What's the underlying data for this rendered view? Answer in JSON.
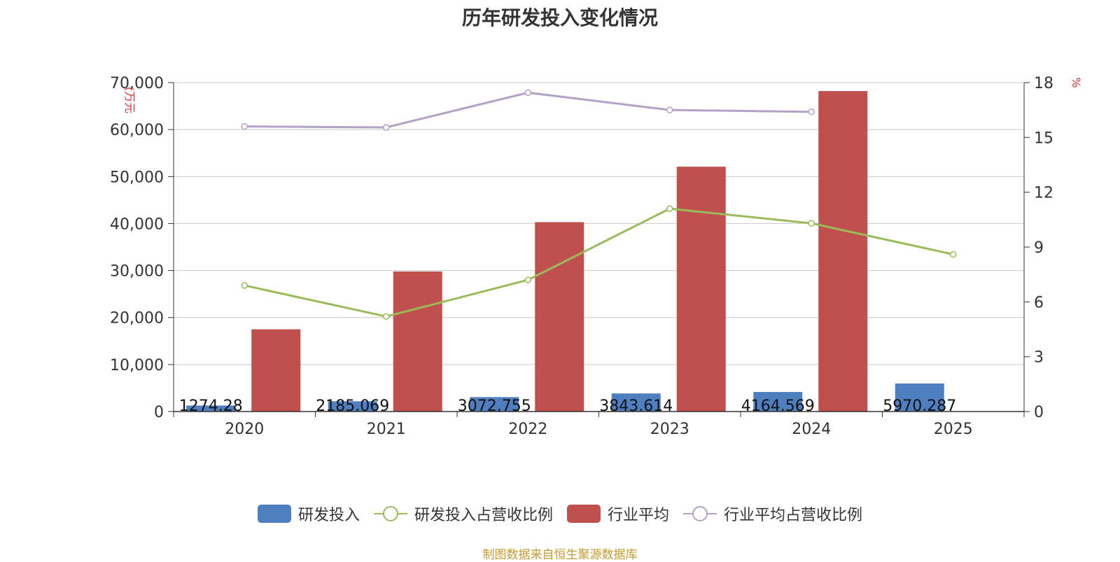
{
  "chart_data": {
    "type": "bar+line",
    "title": "历年研发投入变化情况",
    "y_left_label": "(万元",
    "y_right_label": "%",
    "categories": [
      "2020",
      "2021",
      "2022",
      "2023",
      "2024",
      "2025"
    ],
    "y_left_ticks": [
      "0",
      "10,000",
      "20,000",
      "30,000",
      "40,000",
      "50,000",
      "60,000",
      "70,000"
    ],
    "y_right_ticks": [
      "0",
      "3",
      "6",
      "9",
      "12",
      "15",
      "18"
    ],
    "y_left_range": [
      0,
      70000
    ],
    "y_right_range": [
      0,
      18
    ],
    "grid": true,
    "legend_position": "bottom",
    "series": [
      {
        "name": "研发投入",
        "type": "bar",
        "axis": "left",
        "color": "#4f7fc0",
        "values": [
          1274.28,
          2185.069,
          3072.755,
          3843.614,
          4164.569,
          5970.287
        ],
        "labels": [
          "1274.28",
          "2185.069",
          "3072.755",
          "3843.614",
          "4164.569",
          "5970.287"
        ]
      },
      {
        "name": "研发投入占营收比例",
        "type": "line",
        "axis": "right",
        "color": "#9bbb59",
        "values": [
          6.9,
          5.2,
          7.2,
          11.1,
          10.3,
          8.6
        ]
      },
      {
        "name": "行业平均",
        "type": "bar",
        "axis": "left",
        "color": "#c0504d",
        "values": [
          17500,
          29800,
          40300,
          52100,
          68200,
          null
        ]
      },
      {
        "name": "行业平均占营收比例",
        "type": "line",
        "axis": "right",
        "color": "#b3a2c7",
        "values": [
          15.6,
          15.55,
          17.45,
          16.5,
          16.4,
          null
        ]
      }
    ]
  },
  "footnote": "制图数据来自恒生聚源数据库"
}
